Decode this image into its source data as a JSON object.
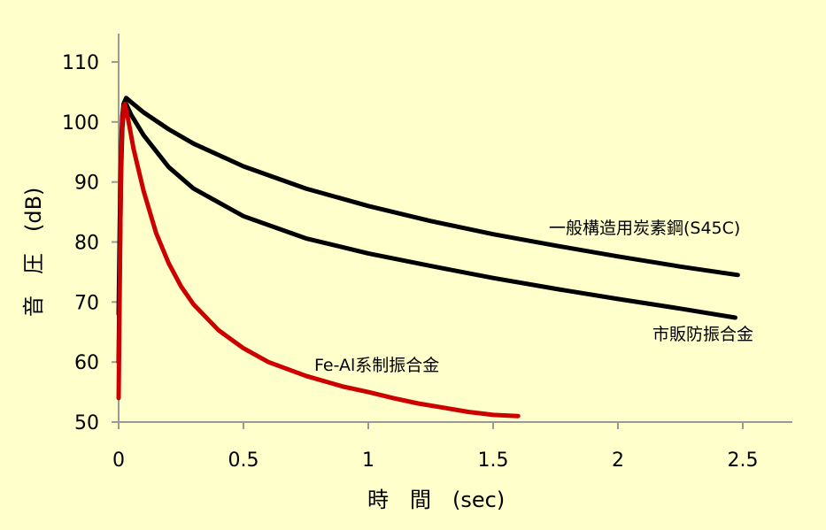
{
  "chart_data": {
    "type": "line",
    "xlabel": "時　間　(sec)",
    "ylabel": "音　圧　(dB)",
    "xlim": [
      0,
      2.7
    ],
    "ylim": [
      50,
      115
    ],
    "x_ticks": [
      "0",
      "0.5",
      "1",
      "1.5",
      "2",
      "2.5"
    ],
    "y_ticks": [
      "50",
      "60",
      "70",
      "80",
      "90",
      "100",
      "110"
    ],
    "grid": false,
    "series": [
      {
        "name": "一般構造用炭素鋼(S45C)",
        "color": "#000000",
        "x": [
          0,
          0.005,
          0.01,
          0.015,
          0.02,
          0.03,
          0.05,
          0.1,
          0.2,
          0.3,
          0.5,
          0.75,
          1.0,
          1.25,
          1.5,
          1.75,
          2.0,
          2.25,
          2.48
        ],
        "y": [
          68,
          84,
          96,
          101,
          103,
          104,
          103.3,
          101.6,
          98.8,
          96.4,
          92.6,
          88.9,
          86.0,
          83.5,
          81.3,
          79.4,
          77.6,
          75.9,
          74.5
        ]
      },
      {
        "name": "市販防振合金",
        "color": "#000000",
        "x": [
          0,
          0.005,
          0.01,
          0.015,
          0.02,
          0.03,
          0.05,
          0.1,
          0.2,
          0.3,
          0.5,
          0.75,
          1.0,
          1.25,
          1.5,
          1.75,
          2.0,
          2.25,
          2.47
        ],
        "y": [
          60,
          78,
          92,
          99,
          102,
          103,
          101.2,
          97.8,
          92.5,
          88.9,
          84.3,
          80.6,
          78.1,
          76.0,
          74.0,
          72.2,
          70.5,
          68.9,
          67.4
        ]
      },
      {
        "name": "Fe-Al系制振合金",
        "color": "#cc0000",
        "x": [
          0,
          0.005,
          0.01,
          0.015,
          0.02,
          0.025,
          0.04,
          0.06,
          0.1,
          0.15,
          0.2,
          0.25,
          0.3,
          0.4,
          0.5,
          0.6,
          0.75,
          0.9,
          1.0,
          1.1,
          1.2,
          1.3,
          1.4,
          1.5,
          1.6
        ],
        "y": [
          54,
          75,
          94,
          100,
          102.5,
          103,
          100,
          95.5,
          88.5,
          81.5,
          76.5,
          72.6,
          69.6,
          65.3,
          62.3,
          60.0,
          57.7,
          55.9,
          55.0,
          54.0,
          53.1,
          52.4,
          51.7,
          51.2,
          51.0
        ]
      }
    ]
  }
}
